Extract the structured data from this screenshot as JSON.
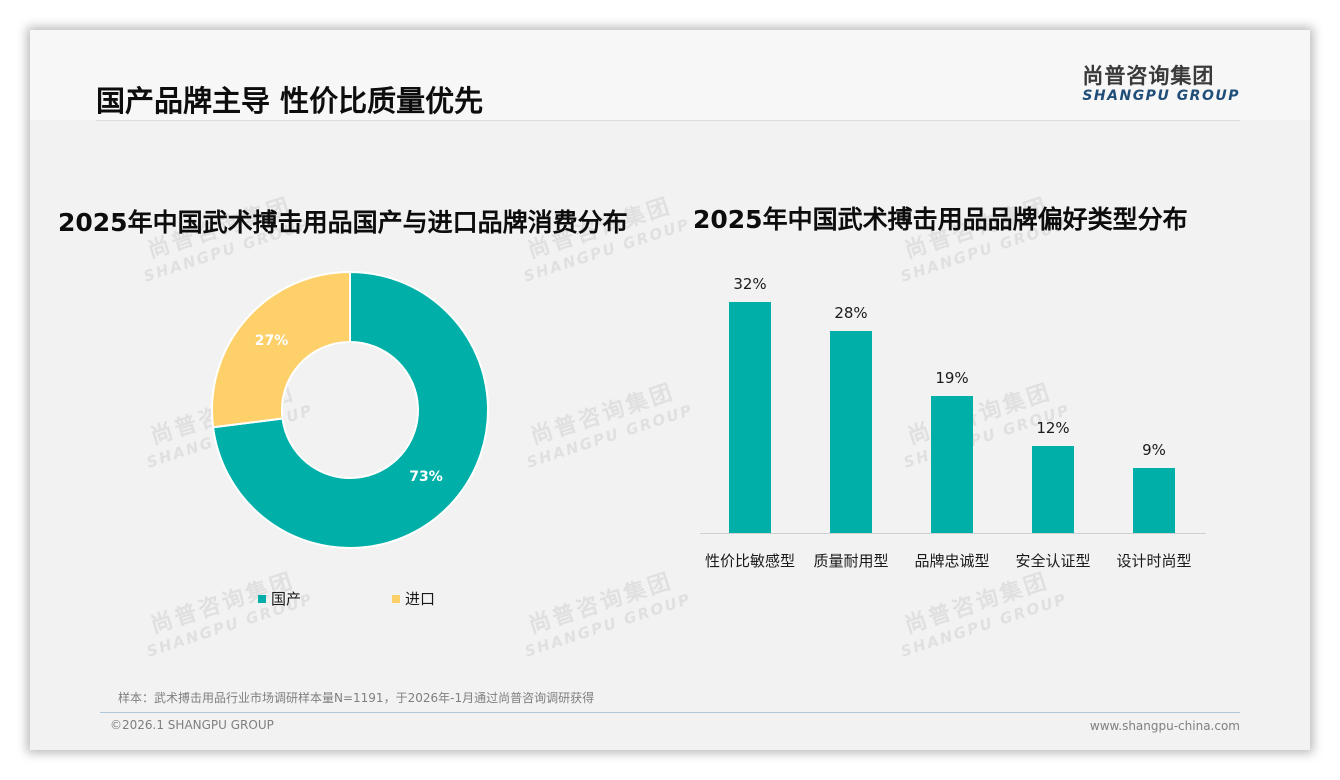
{
  "header": {
    "title": "国产品牌主导 性价比质量优先",
    "logo_cn": "尚普咨询集团",
    "logo_en": "SHANGPU GROUP"
  },
  "watermark": {
    "cn": "尚普咨询集团",
    "en": "SHANGPU GROUP"
  },
  "colors": {
    "teal": "#00b0a8",
    "yellow": "#fdd06a",
    "title": "#0d0d0d",
    "logo_blue": "#1f4e79"
  },
  "left_chart": {
    "title": "2025年中国武术搏击用品国产与进口品牌消费分布",
    "slices": [
      {
        "label": "国产",
        "value": 73,
        "display": "73%",
        "color": "#00b0a8"
      },
      {
        "label": "进口",
        "value": 27,
        "display": "27%",
        "color": "#fdd06a"
      }
    ]
  },
  "right_chart": {
    "title": "2025年中国武术搏击用品品牌偏好类型分布",
    "bars": [
      {
        "label": "性价比敏感型",
        "value": 32,
        "display": "32%"
      },
      {
        "label": "质量耐用型",
        "value": 28,
        "display": "28%"
      },
      {
        "label": "品牌忠诚型",
        "value": 19,
        "display": "19%"
      },
      {
        "label": "安全认证型",
        "value": 12,
        "display": "12%"
      },
      {
        "label": "设计时尚型",
        "value": 9,
        "display": "9%"
      }
    ]
  },
  "chart_data": [
    {
      "type": "pie",
      "title": "2025年中国武术搏击用品国产与进口品牌消费分布",
      "categories": [
        "国产",
        "进口"
      ],
      "values": [
        73,
        27
      ],
      "unit": "%",
      "donut": true,
      "legend_position": "bottom",
      "colors": [
        "#00b0a8",
        "#fdd06a"
      ]
    },
    {
      "type": "bar",
      "title": "2025年中国武术搏击用品品牌偏好类型分布",
      "categories": [
        "性价比敏感型",
        "质量耐用型",
        "品牌忠诚型",
        "安全认证型",
        "设计时尚型"
      ],
      "values": [
        32,
        28,
        19,
        12,
        9
      ],
      "unit": "%",
      "xlabel": "",
      "ylabel": "",
      "ylim": [
        0,
        32
      ],
      "grid": false,
      "data_labels": true,
      "color": "#00b0a8"
    }
  ],
  "footer": {
    "note": "样本：武术搏击用品行业市场调研样本量N=1191，于2026年-1月通过尚普咨询调研获得",
    "copyright": "©2026.1 SHANGPU GROUP",
    "website": "www.shangpu-china.com"
  }
}
